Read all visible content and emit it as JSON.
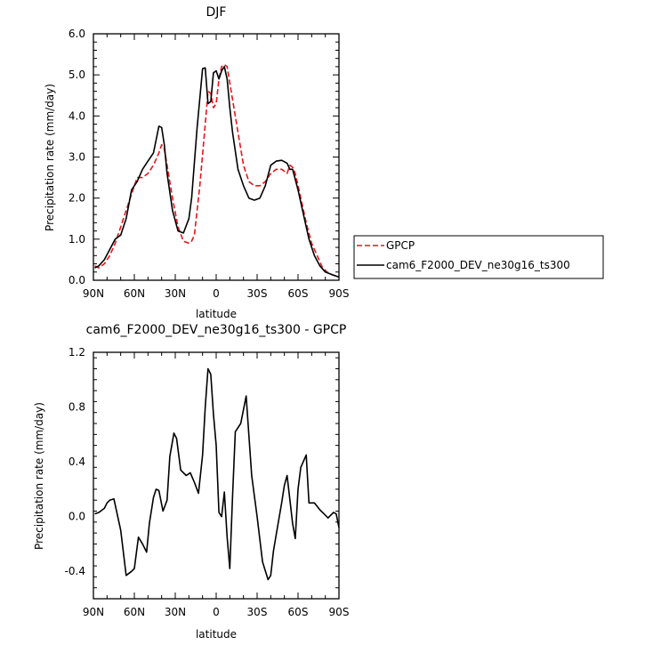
{
  "chart_data": [
    {
      "type": "line",
      "title": "DJF",
      "xlabel": "latitude",
      "ylabel": "Precipitation rate (mm/day)",
      "xlim": [
        90,
        -90
      ],
      "ylim": [
        0,
        6
      ],
      "x_ticks": [
        90,
        60,
        30,
        0,
        -30,
        -60,
        -90
      ],
      "x_tick_labels": [
        "90N",
        "60N",
        "30N",
        "0",
        "30S",
        "60S",
        "90S"
      ],
      "y_ticks": [
        0,
        1,
        2,
        3,
        4,
        5,
        6
      ],
      "y_tick_labels": [
        "0.0",
        "1.0",
        "2.0",
        "3.0",
        "4.0",
        "5.0",
        "6.0"
      ],
      "legend_position": "outside-right",
      "series": [
        {
          "name": "GPCP",
          "color": "#e8141b",
          "dash": "dashed",
          "x": [
            89,
            86,
            82,
            78,
            74,
            70,
            66,
            62,
            58,
            54,
            50,
            46,
            42,
            40,
            38,
            36,
            32,
            28,
            24,
            20,
            18,
            16,
            12,
            8,
            6,
            4,
            2,
            0,
            -2,
            -4,
            -6,
            -8,
            -10,
            -12,
            -16,
            -20,
            -24,
            -28,
            -32,
            -36,
            -40,
            -44,
            -48,
            -52,
            -54,
            -56,
            -58,
            -60,
            -62,
            -66,
            -70,
            -74,
            -78,
            -82,
            -86,
            -90
          ],
          "values": [
            0.35,
            0.3,
            0.4,
            0.6,
            0.9,
            1.3,
            1.7,
            2.1,
            2.5,
            2.5,
            2.6,
            2.8,
            3.1,
            3.3,
            3.2,
            2.8,
            2.0,
            1.3,
            0.95,
            0.9,
            0.95,
            1.1,
            2.3,
            3.8,
            4.6,
            4.55,
            4.2,
            4.3,
            4.9,
            5.2,
            5.25,
            5.2,
            4.8,
            4.4,
            3.6,
            2.8,
            2.4,
            2.3,
            2.3,
            2.4,
            2.6,
            2.7,
            2.7,
            2.6,
            2.8,
            2.75,
            2.6,
            2.3,
            2.0,
            1.4,
            0.9,
            0.6,
            0.3,
            0.18,
            0.12,
            0.1
          ]
        },
        {
          "name": "cam6_F2000_DEV_ne30g16_ts300",
          "color": "#000000",
          "dash": "solid",
          "x": [
            89,
            86,
            82,
            78,
            74,
            72,
            70,
            66,
            62,
            58,
            54,
            50,
            46,
            42,
            40,
            38,
            36,
            32,
            28,
            24,
            20,
            18,
            14,
            10,
            8,
            6,
            4,
            2,
            0,
            -2,
            -4,
            -6,
            -8,
            -10,
            -12,
            -16,
            -20,
            -24,
            -28,
            -32,
            -36,
            -40,
            -44,
            -48,
            -52,
            -54,
            -56,
            -60,
            -64,
            -68,
            -72,
            -76,
            -80,
            -84,
            -88,
            -90
          ],
          "values": [
            0.3,
            0.35,
            0.5,
            0.75,
            1.0,
            1.05,
            1.1,
            1.5,
            2.2,
            2.4,
            2.7,
            2.9,
            3.1,
            3.75,
            3.72,
            3.3,
            2.6,
            1.7,
            1.2,
            1.15,
            1.5,
            2.0,
            3.7,
            5.15,
            5.17,
            4.3,
            4.35,
            5.05,
            5.1,
            4.9,
            5.1,
            5.2,
            4.9,
            4.2,
            3.6,
            2.7,
            2.3,
            2.0,
            1.95,
            2.0,
            2.3,
            2.8,
            2.9,
            2.92,
            2.85,
            2.7,
            2.7,
            2.2,
            1.6,
            1.0,
            0.6,
            0.35,
            0.2,
            0.15,
            0.1,
            0.08
          ]
        }
      ]
    },
    {
      "type": "line",
      "title": "cam6_F2000_DEV_ne30g16_ts300 - GPCP",
      "xlabel": "latitude",
      "ylabel": "Precipitation rate (mm/day)",
      "xlim": [
        90,
        -90
      ],
      "ylim": [
        -0.6,
        1.2
      ],
      "x_ticks": [
        90,
        60,
        30,
        0,
        -30,
        -60,
        -90
      ],
      "x_tick_labels": [
        "90N",
        "60N",
        "30N",
        "0",
        "30S",
        "60S",
        "90S"
      ],
      "y_ticks": [
        -0.4,
        0.0,
        0.4,
        0.8,
        1.2
      ],
      "y_tick_labels": [
        "-0.4",
        "0.0",
        "0.4",
        "0.8",
        "1.2"
      ],
      "series": [
        {
          "color": "#000000",
          "dash": "solid",
          "x": [
            89,
            86,
            82,
            80,
            78,
            75,
            70,
            66,
            62,
            60,
            57,
            54,
            51,
            49,
            46,
            44,
            42,
            39,
            36,
            34,
            31,
            29,
            26,
            22,
            19,
            16,
            13,
            10,
            8,
            6,
            4,
            2,
            0,
            -2,
            -4,
            -6,
            -8,
            -10,
            -12,
            -14,
            -18,
            -22,
            -26,
            -30,
            -34,
            -38,
            -40,
            -42,
            -44,
            -48,
            -50,
            -52,
            -56,
            -58,
            -60,
            -62,
            -66,
            -68,
            -72,
            -76,
            -80,
            -82,
            -84,
            -86,
            -88,
            -90
          ],
          "values": [
            0.02,
            0.03,
            0.06,
            0.1,
            0.12,
            0.13,
            -0.1,
            -0.43,
            -0.4,
            -0.38,
            -0.15,
            -0.2,
            -0.26,
            -0.05,
            0.14,
            0.2,
            0.19,
            0.04,
            0.12,
            0.44,
            0.61,
            0.57,
            0.34,
            0.3,
            0.32,
            0.25,
            0.17,
            0.45,
            0.8,
            1.08,
            1.04,
            0.75,
            0.52,
            0.03,
            0.0,
            0.18,
            -0.15,
            -0.38,
            0.15,
            0.62,
            0.68,
            0.88,
            0.3,
            0.0,
            -0.33,
            -0.46,
            -0.43,
            -0.25,
            -0.13,
            0.1,
            0.23,
            0.3,
            -0.05,
            -0.16,
            0.2,
            0.36,
            0.45,
            0.1,
            0.1,
            0.05,
            0.01,
            -0.01,
            0.01,
            0.03,
            0.02,
            -0.08
          ]
        }
      ]
    }
  ]
}
